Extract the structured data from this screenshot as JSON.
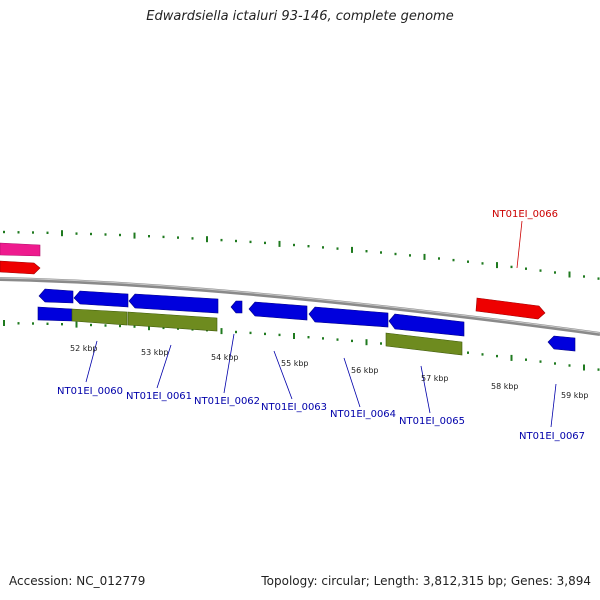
{
  "title": "Edwardsiella ictaluri 93-146, complete genome",
  "accession": "Accession: NC_012779",
  "summary": "Topology: circular; Length: 3,812,315 bp; Genes: 3,894",
  "colors": {
    "forward_gene": "#ee0000",
    "forward_gene_alt": "#ee1b8e",
    "reverse_gene": "#0000dd",
    "rna_feature": "#6e8b1f",
    "backbone": "#888888",
    "dash": "#1f7a1f",
    "forward_label": "#cc0000",
    "reverse_label": "#0000aa"
  },
  "ticks": [
    "52 kbp",
    "53 kbp",
    "54 kbp",
    "55 kbp",
    "56 kbp",
    "57 kbp",
    "58 kbp",
    "59 kbp"
  ],
  "genes": [
    {
      "label": "NT01EI_0060",
      "strand": "reverse"
    },
    {
      "label": "NT01EI_0061",
      "strand": "reverse"
    },
    {
      "label": "NT01EI_0062",
      "strand": "reverse"
    },
    {
      "label": "NT01EI_0063",
      "strand": "reverse"
    },
    {
      "label": "NT01EI_0064",
      "strand": "reverse"
    },
    {
      "label": "NT01EI_0065",
      "strand": "reverse"
    },
    {
      "label": "NT01EI_0066",
      "strand": "forward"
    },
    {
      "label": "NT01EI_0067",
      "strand": "reverse"
    }
  ]
}
